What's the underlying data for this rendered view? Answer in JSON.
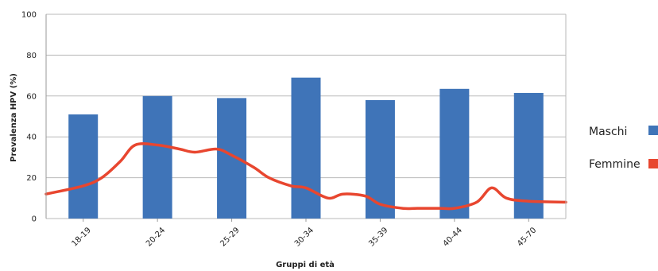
{
  "chart_data": {
    "type": "bar",
    "title": "",
    "xlabel": "Gruppi di età",
    "ylabel": "Prevalenza HPV (%)",
    "ylim": [
      0,
      100
    ],
    "yticks": [
      0,
      20,
      40,
      60,
      80,
      100
    ],
    "grid": true,
    "legend_position": "right",
    "categories": [
      "18-19",
      "20-24",
      "25-29",
      "30-34",
      "35-39",
      "40-44",
      "45-70"
    ],
    "series": [
      {
        "name": "Maschi",
        "type": "bar",
        "color": "#3f74b8",
        "values": [
          51,
          60,
          59,
          69,
          58,
          63.5,
          61.5
        ]
      },
      {
        "name": "Femmine",
        "type": "line",
        "color": "#e8462f",
        "smooth": true,
        "x": [
          -0.5,
          0.0,
          0.25,
          0.5,
          0.7,
          1.0,
          1.3,
          1.5,
          1.8,
          2.0,
          2.3,
          2.5,
          2.8,
          3.0,
          3.3,
          3.5,
          3.8,
          4.0,
          4.3,
          4.5,
          4.8,
          5.0,
          5.3,
          5.5,
          5.7,
          6.0,
          6.5
        ],
        "values": [
          12,
          16,
          20,
          28,
          36,
          36,
          34,
          32.5,
          34,
          31,
          25,
          20,
          16,
          15,
          10,
          12,
          11,
          7,
          5,
          5,
          5,
          5,
          8,
          15,
          10,
          8.5,
          8
        ]
      }
    ]
  }
}
